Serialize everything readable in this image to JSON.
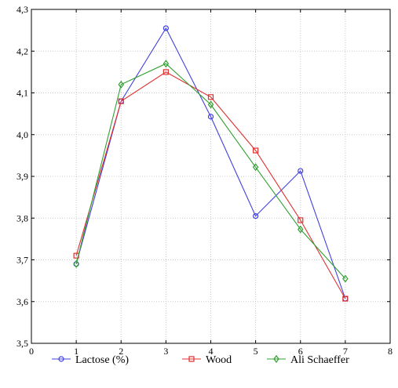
{
  "chart_data": {
    "type": "line",
    "x": [
      1,
      2,
      3,
      4,
      5,
      6,
      7
    ],
    "xlim": [
      0,
      8
    ],
    "ylim": [
      3.5,
      4.3
    ],
    "xticks": [
      "0",
      "1",
      "2",
      "3",
      "4",
      "5",
      "6",
      "7",
      "8"
    ],
    "yticks": [
      "3,5",
      "3,6",
      "3,7",
      "3,8",
      "3,9",
      "4,0",
      "4,1",
      "4,2",
      "4,3"
    ],
    "grid": true,
    "legend_position": "bottom",
    "series": [
      {
        "name": "Lactose (%)",
        "color": "#4040e0",
        "marker": "circle",
        "values": [
          3.69,
          4.08,
          4.255,
          4.043,
          3.805,
          3.913,
          3.607
        ]
      },
      {
        "name": "Wood",
        "color": "#e03030",
        "marker": "square",
        "values": [
          3.71,
          4.08,
          4.15,
          4.09,
          3.962,
          3.795,
          3.607
        ]
      },
      {
        "name": "Ali Schaeffer",
        "color": "#30a030",
        "marker": "diamond",
        "values": [
          3.69,
          4.12,
          4.17,
          4.072,
          3.922,
          3.773,
          3.655
        ]
      }
    ]
  }
}
